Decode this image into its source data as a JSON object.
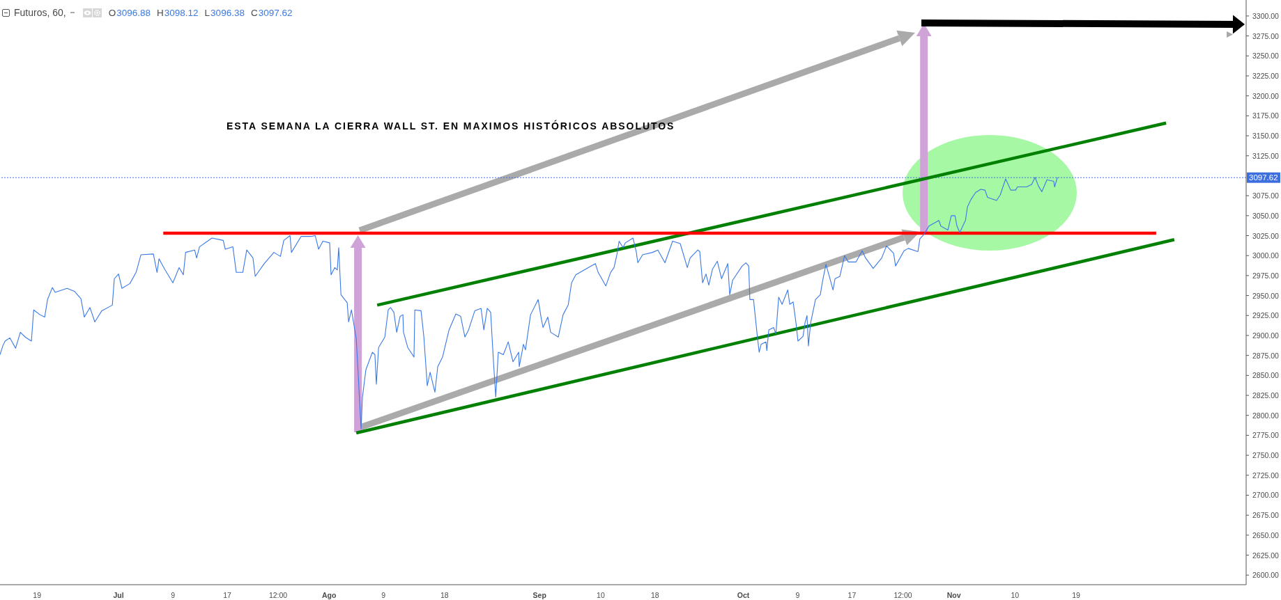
{
  "chart_data": {
    "type": "line",
    "title": "Futuros, 60,",
    "annotations": [
      "O3096.88",
      "H3098.12",
      "L3096.38",
      "C3097.62",
      "ESTA SEMANA LA CIERRA WALL ST. EN MAXIMOS HISTÓRICOS ABSOLUTOS"
    ],
    "series": [
      {
        "color": "#3a78e6",
        "x": [
          "--06-13T13:00",
          "--06-13T23:00",
          "--06-14T07:00",
          "--06-15T00:00",
          "--06-15T20:00",
          "--06-16T13:00",
          "--06-17T06:00",
          "--06-18T04:00",
          "--06-18T12:00",
          "--06-19T10:00",
          "--06-20T03:00",
          "--06-20T13:00",
          "--06-21T06:00",
          "--06-21T16:00",
          "--06-23T10:00",
          "--06-24T13:00",
          "--06-25T11:00",
          "--06-25T23:00",
          "--06-26T19:00",
          "--06-27T12:00",
          "--06-28T13:00",
          "--06-30T02:00",
          "--06-30T09:00",
          "--07-01T00:00",
          "--07-01T12:00",
          "--07-02T16:00",
          "--07-03T14:00",
          "--07-04T07:00",
          "--07-06T03:00",
          "--07-06T16:00",
          "--07-06T23:00",
          "--07-07T19:00",
          "--07-09T00:00",
          "--07-09T22:00",
          "--07-10T13:00",
          "--07-10T21:00",
          "--07-12T05:00",
          "--07-12T12:00",
          "--07-12T22:00",
          "--07-14T18:00",
          "--07-16T10:00",
          "--07-16T17:00",
          "--07-17T20:00",
          "--07-18T08:00",
          "--07-19T07:00",
          "--07-19T21:00",
          "--07-20T19:00",
          "--07-21T03:00",
          "--07-22T11:00",
          "--07-23T21:00",
          "--07-24T20:00",
          "--07-25T08:00",
          "--07-26T06:00",
          "--07-26T11:00",
          "--07-27T21:00",
          "--07-29T08:00",
          "--07-29T23:00",
          "--07-30T11:00",
          "--07-31T02:00",
          "--08-01T02:00",
          "--08-01T07:00",
          "--08-01T20:00",
          "--08-02T05:00",
          "--08-02T10:00",
          "--08-02T18:00",
          "--08-03T16:00",
          "--08-03T21:00",
          "--08-04T07:00",
          "--08-05T00:00",
          "--08-05T07:00",
          "--08-05T17:00",
          "--08-05T22:00",
          "--08-06T10:00",
          "--08-07T09:00",
          "--08-07T18:00",
          "--08-07T23:00",
          "--08-08T07:00",
          "--08-09T05:00",
          "--08-09T17:00",
          "--08-10T01:00",
          "--08-10T13:00",
          "--08-10T23:00",
          "--08-11T11:00",
          "--08-11T21:00",
          "--08-11T23:00",
          "--08-12T14:00",
          "--08-13T12:00",
          "--08-13T15:00",
          "--08-14T13:00",
          "--08-14T23:00",
          "--08-15T11:00",
          "--08-15T21:00",
          "--08-16T14:00",
          "--08-17T00:00",
          "--08-17T17:00",
          "--08-18T16:00",
          "--08-19T16:00",
          "--08-20T09:00",
          "--08-21T00:00",
          "--08-21T13:00",
          "--08-22T11:00",
          "--08-23T09:00",
          "--08-23T19:00",
          "--08-24T07:00",
          "--08-24T19:00",
          "--08-25T05:00",
          "--08-25T13:00",
          "--08-25T22:00",
          "--08-26T16:00",
          "--08-27T09:00",
          "--08-28T02:00",
          "--08-28T22:00",
          "--08-29T00:00",
          "--08-29T15:00",
          "--08-29T22:00",
          "--08-30T16:00",
          "--08-31T19:00",
          "--09-01T05:00",
          "--09-01T12:00",
          "--09-02T05:00",
          "--09-02T15:00",
          "--09-03T18:00",
          "--09-04T11:00",
          "--09-05T05:00",
          "--09-05T17:00",
          "--09-06T08:00",
          "--09-08T04:00",
          "--09-09T05:00",
          "--09-09T15:00",
          "--09-10T18:00",
          "--09-11T11:00",
          "--09-11T23:00",
          "--09-12T09:00",
          "--09-12T17:00",
          "--09-13T07:00",
          "--09-13T15:00",
          "--09-14T18:00",
          "--09-15T06:00",
          "--09-15T11:00",
          "--09-16T04:00",
          "--09-17T15:00",
          "--09-18T10:00",
          "--09-19T11:00",
          "--09-20T14:00",
          "--09-21T17:00",
          "--09-22T18:00",
          "--09-23T04:00",
          "--09-24T07:00",
          "--09-24T14:00",
          "--09-25T00:00",
          "--09-25T12:00",
          "--09-25T22:00",
          "--09-26T11:00",
          "--09-27T04:00",
          "--09-27T19:00",
          "--09-28T17:00",
          "--09-29T00:00",
          "--09-29T10:00",
          "--09-30T20:00",
          "--10-01T09:00",
          "--10-01T19:00",
          "--10-01T23:00",
          "--10-02T12:00",
          "--10-03T00:00",
          "--10-03T08:00",
          "--10-03T15:00",
          "--10-04T08:00",
          "--10-04T11:00",
          "--10-04T18:00",
          "--10-05T11:00",
          "--10-05T19:00",
          "--10-06T05:00",
          "--10-06T17:00",
          "--10-07T13:00",
          "--10-07T20:00",
          "--10-08T08:00",
          "--10-08T18:00",
          "--10-09T01:00",
          "--10-09T19:00",
          "--10-10T02:00",
          "--10-10T09:00",
          "--10-10T14:00",
          "--10-10T22:00",
          "--10-11T15:00",
          "--10-12T08:00",
          "--10-12T16:00",
          "--10-13T04:00",
          "--10-13T16:00",
          "--10-14T05:00",
          "--10-14T12:00",
          "--10-15T05:00",
          "--10-15T22:00",
          "--10-16T11:00",
          "--10-17T14:00",
          "--10-18T12:00",
          "--10-19T00:00",
          "--10-20T03:00",
          "--10-21T09:00",
          "--10-22T02:00",
          "--10-23T03:00",
          "--10-23T10:00",
          "--10-24T16:00",
          "--10-25T07:00",
          "--10-26T17:00",
          "--10-27T00:00",
          "--10-27T13:00",
          "--10-28T08:00",
          "--10-29T19:00",
          "--10-30T02:00",
          "--10-31T03:00",
          "--10-31T15:00",
          "--11-01T04:00",
          "--11-01T11:00",
          "--11-01T21:00",
          "--11-02T09:00",
          "--11-02T17:00",
          "--11-03T00:00",
          "--11-03T12:00",
          "--11-04T05:00",
          "--11-04T23:00",
          "--11-05T14:00",
          "--11-05T23:00",
          "--11-07T07:00",
          "--11-07T20:00",
          "--11-08T15:00",
          "--11-09T09:00",
          "--11-10T02:00",
          "--11-10T09:00",
          "--11-11T17:00",
          "--11-12T11:00",
          "--11-12T23:00",
          "--11-13T11:00",
          "--11-13T23:00",
          "--11-14T17:00",
          "--11-15T17:00",
          "--11-15T20:00",
          "--11-16T06:00"
        ],
        "values": [
          2876,
          2887,
          2893,
          2897,
          2884,
          2904,
          2898,
          2893,
          2932,
          2926,
          2923,
          2945,
          2960,
          2954,
          2959,
          2955,
          2946,
          2923,
          2935,
          2917,
          2931,
          2938,
          2971,
          2977,
          2959,
          2965,
          2979,
          3001,
          3002,
          2979,
          2996,
          2983,
          2966,
          2985,
          2976,
          3004,
          3007,
          2997,
          3011,
          3022,
          3019,
          3008,
          3011,
          2979,
          2979,
          3007,
          2997,
          2974,
          2990,
          3004,
          2999,
          3019,
          3025,
          3004,
          3024,
          3024,
          3025,
          3008,
          3018,
          3016,
          2976,
          2985,
          2982,
          3010,
          2951,
          2941,
          2917,
          2932,
          2896,
          2851,
          2783,
          2823,
          2857,
          2879,
          2876,
          2839,
          2885,
          2898,
          2932,
          2935,
          2929,
          2904,
          2924,
          2926,
          2904,
          2885,
          2873,
          2932,
          2931,
          2898,
          2837,
          2854,
          2829,
          2861,
          2873,
          2907,
          2927,
          2924,
          2898,
          2907,
          2931,
          2934,
          2907,
          2934,
          2929,
          2867,
          2823,
          2879,
          2876,
          2892,
          2867,
          2879,
          2861,
          2889,
          2882,
          2926,
          2945,
          2923,
          2910,
          2923,
          2904,
          2898,
          2926,
          2938,
          2966,
          2976,
          2985,
          2990,
          2979,
          2962,
          2979,
          2985,
          3001,
          3018,
          3010,
          3016,
          3022,
          3004,
          2991,
          3001,
          3004,
          3007,
          2991,
          3018,
          3015,
          2985,
          2997,
          3007,
          3005,
          2966,
          2977,
          2963,
          2983,
          2993,
          2971,
          2990,
          2951,
          2969,
          2987,
          2991,
          2987,
          2945,
          2945,
          2904,
          2879,
          2889,
          2892,
          2881,
          2907,
          2910,
          2902,
          2948,
          2939,
          2957,
          2939,
          2942,
          2916,
          2893,
          2899,
          2916,
          2925,
          2887,
          2916,
          2945,
          2951,
          2968,
          2989,
          2974,
          2957,
          2971,
          2974,
          3000,
          2992,
          2992,
          3006,
          2997,
          2984,
          2997,
          3012,
          3003,
          2987,
          3006,
          3009,
          3005,
          3021,
          3026,
          3037,
          3044,
          3037,
          3032,
          3050,
          3050,
          3037,
          3029,
          3038,
          3044,
          3061,
          3070,
          3079,
          3083,
          3082,
          3073,
          3069,
          3076,
          3096,
          3082,
          3082,
          3086,
          3086,
          3089,
          3098,
          3087,
          3080,
          3095,
          3093,
          3086,
          3098
        ]
      },
      {
        "type": "line",
        "color": "#ff0000",
        "x": [
          "--07-07T14:00",
          "--11-30T19:00"
        ],
        "values": [
          3028,
          3028
        ]
      },
      {
        "type": "line",
        "color": "#008000",
        "x": [
          "--08-08T02:00",
          "--12-02T06:00"
        ],
        "values": [
          2938,
          3166
        ]
      },
      {
        "type": "line",
        "color": "#008000",
        "x": [
          "--08-05T00:00",
          "--12-03T11:00"
        ],
        "values": [
          2778,
          3020
        ]
      }
    ],
    "xlim": [
      "--06-13T13:00",
      "--12-14T01:00"
    ],
    "xticks": [
      {
        "value": "--06-19",
        "label": "19"
      },
      {
        "value": "--07-01",
        "label": "Jul"
      },
      {
        "value": "--07-09",
        "label": "9"
      },
      {
        "value": "--07-17",
        "label": "17"
      },
      {
        "value": "--07-24T12:00",
        "label": "12:00"
      },
      {
        "value": "--08-01",
        "label": "Ago"
      },
      {
        "value": "--08-09",
        "label": "9"
      },
      {
        "value": "--08-18",
        "label": "18"
      },
      {
        "value": "--09-01",
        "label": "Sep"
      },
      {
        "value": "--09-10",
        "label": "10"
      },
      {
        "value": "--09-18",
        "label": "18"
      },
      {
        "value": "--10-01",
        "label": "Oct"
      },
      {
        "value": "--10-09",
        "label": "9"
      },
      {
        "value": "--10-17",
        "label": "17"
      },
      {
        "value": "--10-24T12:00",
        "label": "12:00"
      },
      {
        "value": "--11-01",
        "label": "Nov"
      },
      {
        "value": "--11-10",
        "label": "10"
      },
      {
        "value": "--11-19",
        "label": "19"
      }
    ],
    "ylim": [
      2588,
      3320
    ],
    "yticks": [
      {
        "value": 2600,
        "label": "2600.00"
      },
      {
        "value": 2625,
        "label": "2625.00"
      },
      {
        "value": 2650,
        "label": "2650.00"
      },
      {
        "value": 2675,
        "label": "2675.00"
      },
      {
        "value": 2700,
        "label": "2700.00"
      },
      {
        "value": 2725,
        "label": "2725.00"
      },
      {
        "value": 2750,
        "label": "2750.00"
      },
      {
        "value": 2775,
        "label": "2775.00"
      },
      {
        "value": 2800,
        "label": "2800.00"
      },
      {
        "value": 2825,
        "label": "2825.00"
      },
      {
        "value": 2850,
        "label": "2850.00"
      },
      {
        "value": 2875,
        "label": "2875.00"
      },
      {
        "value": 2900,
        "label": "2900.00"
      },
      {
        "value": 2925,
        "label": "2925.00"
      },
      {
        "value": 2950,
        "label": "2950.00"
      },
      {
        "value": 2975,
        "label": "2975.00"
      },
      {
        "value": 3000,
        "label": "3000.00"
      },
      {
        "value": 3025,
        "label": "3025.00"
      },
      {
        "value": 3050,
        "label": "3050.00"
      },
      {
        "value": 3075,
        "label": "3075.00"
      },
      {
        "value": 3125,
        "label": "3125.00"
      },
      {
        "value": 3150,
        "label": "3150.00"
      },
      {
        "value": 3175,
        "label": "3175.00"
      },
      {
        "value": 3200,
        "label": "3200.00"
      },
      {
        "value": 3225,
        "label": "3225.00"
      },
      {
        "value": 3250,
        "label": "3250.00"
      },
      {
        "value": 3275,
        "label": "3275.00"
      },
      {
        "value": 3300,
        "label": "3300.00"
      }
    ],
    "ref_lines": [
      {
        "axis": "y",
        "value": 3097.62,
        "label": "3097.62",
        "color": "#3d6ee0",
        "line_style": "dotted"
      }
    ]
  }
}
